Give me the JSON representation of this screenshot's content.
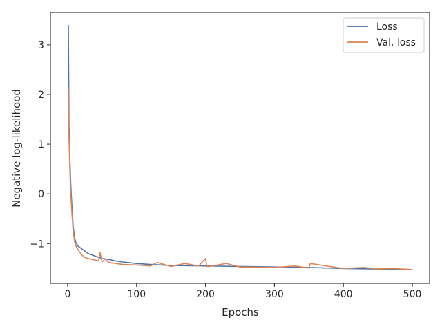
{
  "chart_data": {
    "type": "line",
    "title": "",
    "xlabel": "Epochs",
    "ylabel": "Negative log-likelihood",
    "xlim": [
      -25,
      525
    ],
    "ylim": [
      -1.8,
      3.65
    ],
    "xticks": [
      0,
      100,
      200,
      300,
      400,
      500
    ],
    "xtick_labels": [
      "0",
      "100",
      "200",
      "300",
      "400",
      "500"
    ],
    "yticks": [
      -1,
      0,
      1,
      2,
      3
    ],
    "ytick_labels": [
      "−1",
      "0",
      "1",
      "2",
      "3"
    ],
    "grid": false,
    "legend_position": "top-right",
    "series": [
      {
        "name": "Loss",
        "color": "#4c72b0",
        "x": [
          1,
          2,
          3,
          4,
          5,
          6,
          7,
          8,
          10,
          12,
          15,
          20,
          25,
          30,
          40,
          50,
          60,
          70,
          80,
          100,
          120,
          150,
          200,
          250,
          300,
          350,
          400,
          450,
          500
        ],
        "y": [
          3.4,
          1.4,
          0.8,
          0.35,
          0.05,
          -0.2,
          -0.45,
          -0.65,
          -0.88,
          -0.98,
          -1.05,
          -1.1,
          -1.15,
          -1.2,
          -1.25,
          -1.3,
          -1.32,
          -1.35,
          -1.37,
          -1.4,
          -1.42,
          -1.44,
          -1.45,
          -1.46,
          -1.47,
          -1.48,
          -1.5,
          -1.51,
          -1.52
        ]
      },
      {
        "name": "Val. loss",
        "color": "#dd8452",
        "x": [
          1,
          2,
          3,
          4,
          5,
          6,
          7,
          8,
          10,
          12,
          15,
          20,
          25,
          30,
          40,
          45,
          47,
          50,
          55,
          57,
          60,
          70,
          80,
          100,
          120,
          130,
          150,
          170,
          190,
          200,
          202,
          205,
          230,
          250,
          300,
          330,
          350,
          352,
          400,
          430,
          450,
          470,
          500
        ],
        "y": [
          2.15,
          1.1,
          0.55,
          0.15,
          -0.1,
          -0.35,
          -0.55,
          -0.75,
          -0.95,
          -1.05,
          -1.12,
          -1.22,
          -1.28,
          -1.3,
          -1.33,
          -1.35,
          -1.18,
          -1.37,
          -1.3,
          -1.35,
          -1.38,
          -1.4,
          -1.42,
          -1.43,
          -1.45,
          -1.38,
          -1.46,
          -1.4,
          -1.45,
          -1.3,
          -1.46,
          -1.46,
          -1.4,
          -1.47,
          -1.48,
          -1.45,
          -1.49,
          -1.4,
          -1.5,
          -1.48,
          -1.51,
          -1.5,
          -1.52
        ]
      }
    ]
  }
}
